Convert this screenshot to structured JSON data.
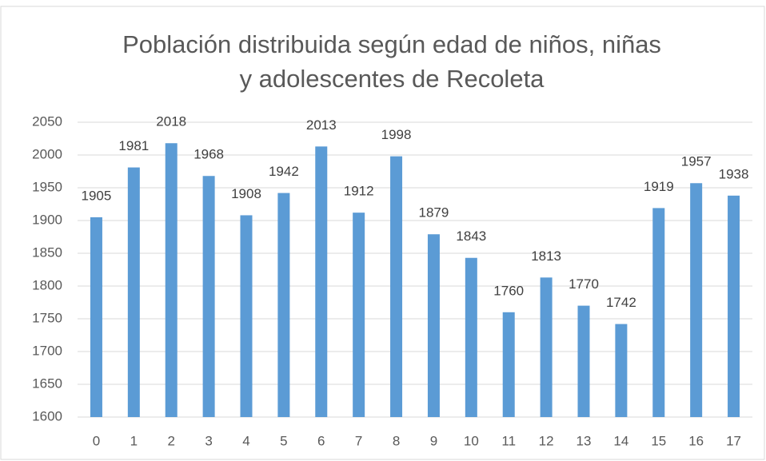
{
  "chart_data": {
    "type": "bar",
    "title": [
      "Población distribuida según edad de niños, niñas",
      "y adolescentes de Recoleta"
    ],
    "categories": [
      "0",
      "1",
      "2",
      "3",
      "4",
      "5",
      "6",
      "7",
      "8",
      "9",
      "10",
      "11",
      "12",
      "13",
      "14",
      "15",
      "16",
      "17"
    ],
    "values": [
      1905,
      1981,
      2018,
      1968,
      1908,
      1942,
      2013,
      1912,
      1998,
      1879,
      1843,
      1760,
      1813,
      1770,
      1742,
      1919,
      1957,
      1938
    ],
    "color": "#5b9bd5",
    "ylim": [
      1600,
      2050
    ],
    "yticks": [
      1600,
      1650,
      1700,
      1750,
      1800,
      1850,
      1900,
      1950,
      2000,
      2050
    ],
    "grid": true
  }
}
